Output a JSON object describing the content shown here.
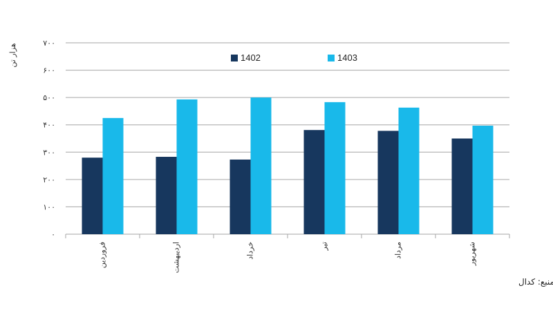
{
  "chart_data": {
    "type": "bar",
    "ylabel": "هزار تن",
    "ylim": [
      0,
      700
    ],
    "yticks": [
      0,
      100,
      200,
      300,
      400,
      500,
      600,
      700
    ],
    "ytick_labels": [
      "۰",
      "۱۰۰",
      "۲۰۰",
      "۳۰۰",
      "۴۰۰",
      "۵۰۰",
      "۶۰۰",
      "۷۰۰"
    ],
    "categories": [
      "فروردین",
      "اردیبهشت",
      "خرداد",
      "تیر",
      "مرداد",
      "شهریور"
    ],
    "series": [
      {
        "name": "1402",
        "color": "#17375e",
        "values": [
          280,
          283,
          273,
          381,
          378,
          350
        ]
      },
      {
        "name": "1403",
        "color": "#19b9ea",
        "values": [
          425,
          493,
          500,
          483,
          463,
          397
        ]
      }
    ],
    "grid": true,
    "legend_position": "top"
  },
  "source_note": "منبع: کدال"
}
